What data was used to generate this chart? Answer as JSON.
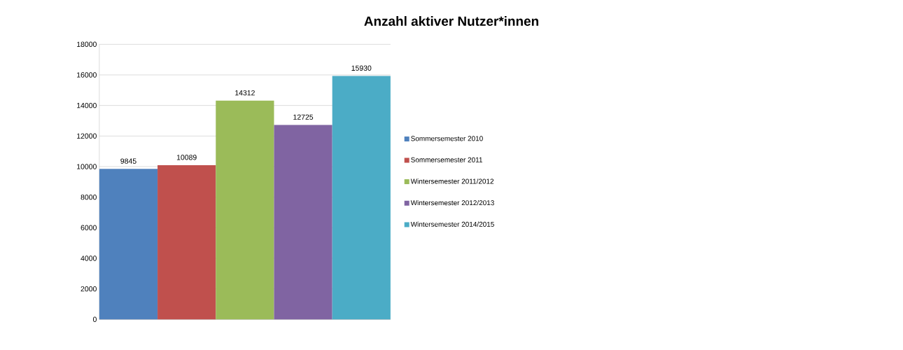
{
  "chart_data": {
    "type": "bar",
    "title": "Anzahl aktiver Nutzer*innen",
    "categories": [
      null
    ],
    "series": [
      {
        "name": "Sommersemester 2010",
        "color": "#4f81bd",
        "values": [
          9845
        ]
      },
      {
        "name": "Sommersemester 2011",
        "color": "#c0504d",
        "values": [
          10089
        ]
      },
      {
        "name": "Wintersemester 2011/2012",
        "color": "#9bbb59",
        "values": [
          14312
        ]
      },
      {
        "name": "Wintersemester 2012/2013",
        "color": "#8064a2",
        "values": [
          12725
        ]
      },
      {
        "name": "Wintersemester 2014/2015",
        "color": "#4bacc6",
        "values": [
          15930
        ]
      }
    ],
    "ylim": [
      0,
      18000
    ],
    "yticks": [
      0,
      2000,
      4000,
      6000,
      8000,
      10000,
      12000,
      14000,
      16000,
      18000
    ],
    "grid": "y",
    "legend": "right",
    "data_labels": true
  }
}
